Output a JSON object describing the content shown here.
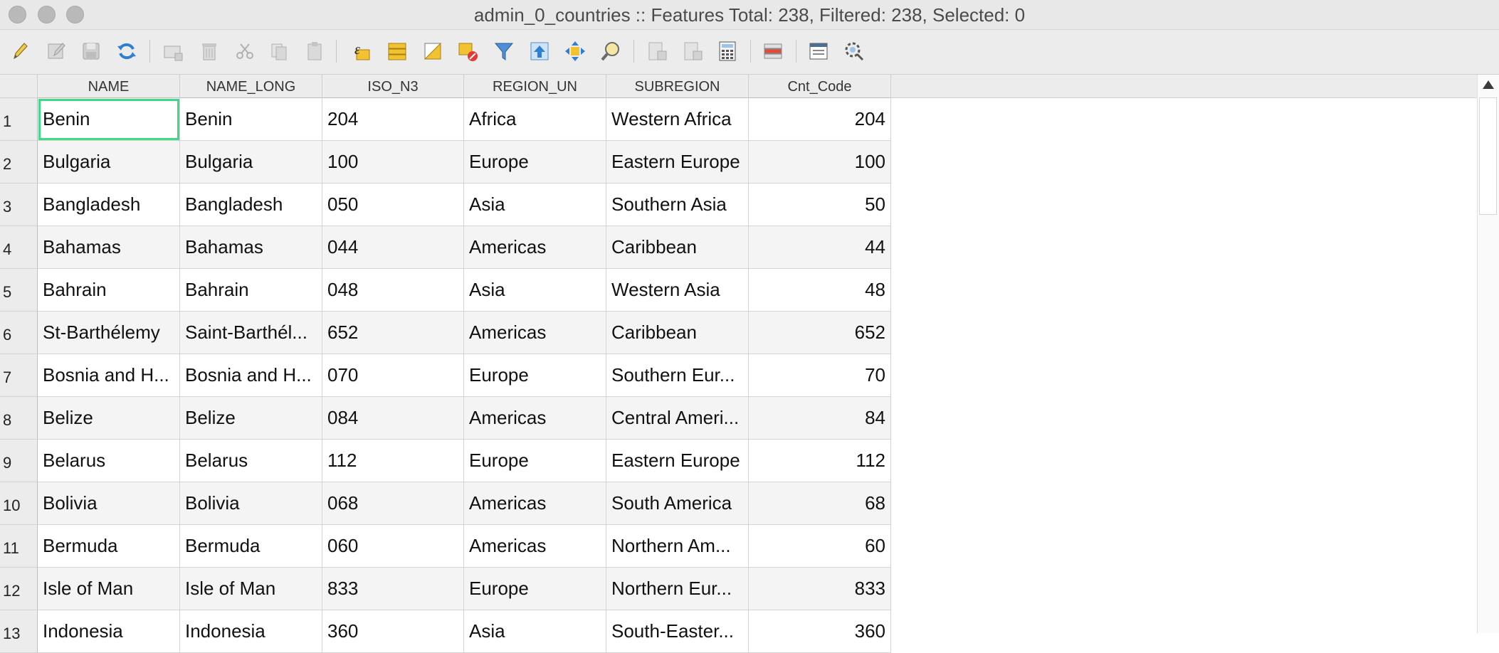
{
  "window": {
    "title": "admin_0_countries :: Features Total: 238, Filtered: 238, Selected: 0"
  },
  "toolbar": {
    "buttons": [
      {
        "icon": "pencil-icon",
        "label": "Toggle editing mode",
        "enabled": true
      },
      {
        "icon": "multi-edit-icon",
        "label": "Toggle multi edit mode",
        "enabled": false
      },
      {
        "icon": "save-icon",
        "label": "Save edits",
        "enabled": false
      },
      {
        "icon": "reload-icon",
        "label": "Reload the table",
        "enabled": true
      },
      {
        "icon": "add-feature-icon",
        "label": "Add feature",
        "enabled": false
      },
      {
        "icon": "delete-icon",
        "label": "Delete selected features",
        "enabled": false
      },
      {
        "icon": "cut-icon",
        "label": "Cut selected rows",
        "enabled": false
      },
      {
        "icon": "copy-icon",
        "label": "Copy selected rows",
        "enabled": false
      },
      {
        "icon": "paste-icon",
        "label": "Paste features",
        "enabled": false
      },
      {
        "icon": "expression-select-icon",
        "label": "Select features using an expression",
        "enabled": true
      },
      {
        "icon": "select-all-icon",
        "label": "Select all",
        "enabled": true
      },
      {
        "icon": "invert-selection-icon",
        "label": "Invert selection",
        "enabled": true
      },
      {
        "icon": "deselect-icon",
        "label": "Deselect all",
        "enabled": true
      },
      {
        "icon": "filter-icon",
        "label": "Select/filter features using form",
        "enabled": true
      },
      {
        "icon": "move-to-top-icon",
        "label": "Move selection to top",
        "enabled": true
      },
      {
        "icon": "pan-to-selected-icon",
        "label": "Pan map to selected rows",
        "enabled": true
      },
      {
        "icon": "zoom-to-selected-icon",
        "label": "Zoom map to selected rows",
        "enabled": true
      },
      {
        "icon": "new-field-icon",
        "label": "New field",
        "enabled": false
      },
      {
        "icon": "delete-field-icon",
        "label": "Delete field",
        "enabled": false
      },
      {
        "icon": "field-calculator-icon",
        "label": "Open field calculator",
        "enabled": true
      },
      {
        "icon": "conditional-formatting-icon",
        "label": "Conditional formatting",
        "enabled": true
      },
      {
        "icon": "dock-icon",
        "label": "Dock attribute table",
        "enabled": true
      },
      {
        "icon": "actions-icon",
        "label": "Actions",
        "enabled": true
      }
    ]
  },
  "table": {
    "columns": [
      "NAME",
      "NAME_LONG",
      "ISO_N3",
      "REGION_UN",
      "SUBREGION",
      "Cnt_Code"
    ],
    "rows": [
      {
        "num": "1",
        "cells": [
          "Benin",
          "Benin",
          "204",
          "Africa",
          "Western Africa",
          "204"
        ]
      },
      {
        "num": "2",
        "cells": [
          "Bulgaria",
          "Bulgaria",
          "100",
          "Europe",
          "Eastern Europe",
          "100"
        ]
      },
      {
        "num": "3",
        "cells": [
          "Bangladesh",
          "Bangladesh",
          "050",
          "Asia",
          "Southern Asia",
          "50"
        ]
      },
      {
        "num": "4",
        "cells": [
          "Bahamas",
          "Bahamas",
          "044",
          "Americas",
          "Caribbean",
          "44"
        ]
      },
      {
        "num": "5",
        "cells": [
          "Bahrain",
          "Bahrain",
          "048",
          "Asia",
          "Western Asia",
          "48"
        ]
      },
      {
        "num": "6",
        "cells": [
          "St-Barthélemy",
          "Saint-Barthél...",
          "652",
          "Americas",
          "Caribbean",
          "652"
        ]
      },
      {
        "num": "7",
        "cells": [
          "Bosnia and H...",
          "Bosnia and H...",
          "070",
          "Europe",
          "Southern Eur...",
          "70"
        ]
      },
      {
        "num": "8",
        "cells": [
          "Belize",
          "Belize",
          "084",
          "Americas",
          "Central Ameri...",
          "84"
        ]
      },
      {
        "num": "9",
        "cells": [
          "Belarus",
          "Belarus",
          "112",
          "Europe",
          "Eastern Europe",
          "112"
        ]
      },
      {
        "num": "10",
        "cells": [
          "Bolivia",
          "Bolivia",
          "068",
          "Americas",
          "South America",
          "68"
        ]
      },
      {
        "num": "11",
        "cells": [
          "Bermuda",
          "Bermuda",
          "060",
          "Americas",
          "Northern Am...",
          "60"
        ]
      },
      {
        "num": "12",
        "cells": [
          "Isle of Man",
          "Isle of Man",
          "833",
          "Europe",
          "Northern Eur...",
          "833"
        ]
      },
      {
        "num": "13",
        "cells": [
          "Indonesia",
          "Indonesia",
          "360",
          "Asia",
          "South-Easter...",
          "360"
        ]
      }
    ]
  },
  "colors": {
    "selected_cell_border": "#3ddc84"
  }
}
